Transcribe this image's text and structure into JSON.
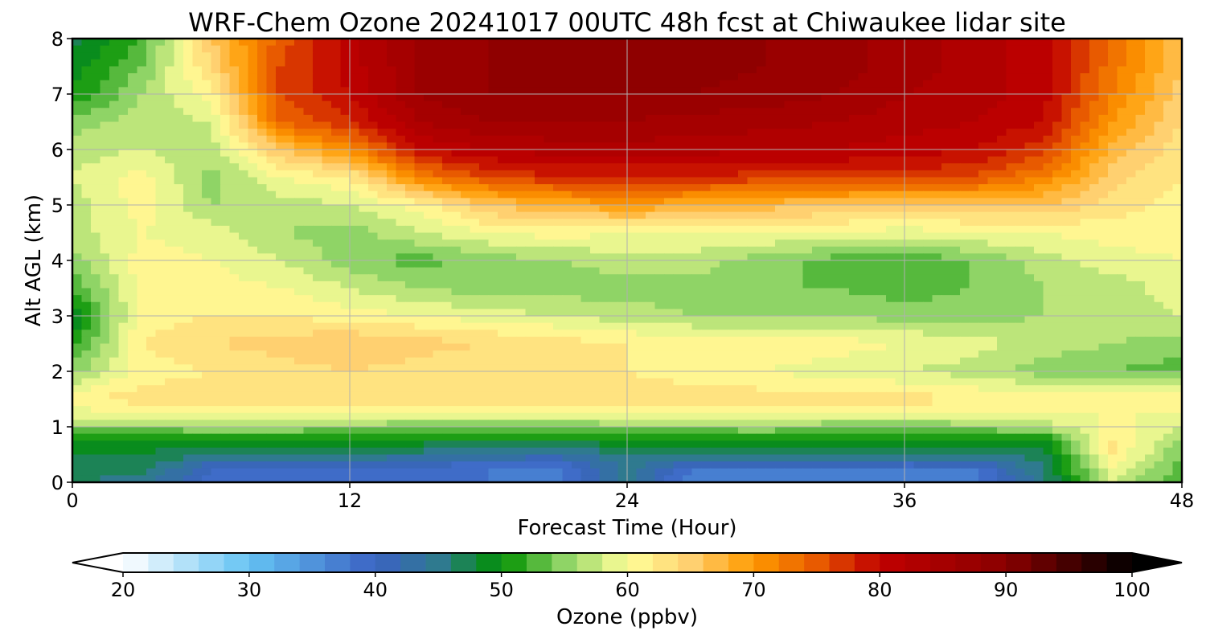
{
  "chart_data": {
    "type": "heatmap",
    "title": "WRF-Chem Ozone  20241017 00UTC 48h fcst at Chiwaukee lidar site",
    "xlabel": "Forecast Time (Hour)",
    "ylabel": "Alt AGL (km)",
    "xlim": [
      0,
      48
    ],
    "ylim": [
      0,
      8
    ],
    "xticks": [
      "0",
      "12",
      "24",
      "36",
      "48"
    ],
    "yticks": [
      "0",
      "1",
      "2",
      "3",
      "4",
      "5",
      "6",
      "7",
      "8"
    ],
    "grid": true,
    "x_hours": [
      0,
      3,
      6,
      9,
      12,
      15,
      18,
      21,
      24,
      27,
      30,
      33,
      36,
      39,
      42,
      45,
      48
    ],
    "y_km": [
      0,
      0.25,
      0.5,
      0.75,
      1,
      1.25,
      1.5,
      2,
      2.5,
      3,
      3.5,
      4,
      4.5,
      5,
      5.5,
      6,
      6.5,
      7,
      7.5,
      8
    ],
    "values_ppbv": [
      [
        46,
        45,
        39,
        39,
        39,
        39,
        38,
        37,
        45,
        36,
        36,
        37,
        37,
        37,
        45,
        58,
        52
      ],
      [
        47,
        47,
        40,
        40,
        40,
        39,
        38,
        37,
        45,
        38,
        38,
        38,
        38,
        38,
        46,
        60,
        53
      ],
      [
        48,
        48,
        46,
        46,
        46,
        45,
        44,
        43,
        46,
        46,
        46,
        46,
        46,
        46,
        47,
        62,
        54
      ],
      [
        49,
        49,
        49,
        49,
        49,
        49,
        49,
        49,
        49,
        49,
        49,
        49,
        49,
        49,
        49,
        62,
        56
      ],
      [
        55,
        55,
        56,
        56,
        55,
        54,
        54,
        54,
        55,
        55,
        56,
        54,
        54,
        55,
        57,
        61,
        58
      ],
      [
        59,
        60,
        61,
        61,
        61,
        60,
        60,
        60,
        60,
        60,
        61,
        61,
        60,
        60,
        60,
        60,
        60
      ],
      [
        62,
        63,
        63,
        64,
        64,
        64,
        64,
        64,
        64,
        64,
        63,
        63,
        63,
        62,
        61,
        61,
        61
      ],
      [
        55,
        61,
        62,
        63,
        64,
        63,
        62,
        62,
        62,
        60,
        60,
        59,
        58,
        57,
        55,
        54,
        53
      ],
      [
        51,
        62,
        64,
        65,
        66,
        65,
        64,
        63,
        62,
        61,
        61,
        61,
        60,
        59,
        57,
        56,
        55
      ],
      [
        48,
        61,
        62,
        62,
        61,
        60,
        59,
        58,
        57,
        56,
        56,
        56,
        55,
        55,
        56,
        57,
        58
      ],
      [
        52,
        61,
        61,
        60,
        58,
        56,
        55,
        55,
        55,
        55,
        54,
        54,
        53,
        54,
        56,
        57,
        59
      ],
      [
        55,
        61,
        60,
        58,
        55,
        53,
        55,
        56,
        57,
        57,
        55,
        53,
        52,
        54,
        57,
        59,
        60
      ],
      [
        57,
        60,
        59,
        56,
        55,
        58,
        60,
        61,
        60,
        60,
        60,
        60,
        59,
        60,
        60,
        61,
        61
      ],
      [
        57,
        61,
        56,
        57,
        58,
        61,
        66,
        68,
        70,
        68,
        67,
        66,
        65,
        66,
        66,
        63,
        61
      ],
      [
        58,
        61,
        55,
        60,
        62,
        72,
        76,
        78,
        78,
        78,
        77,
        77,
        77,
        76,
        72,
        65,
        62
      ],
      [
        57,
        58,
        57,
        66,
        71,
        80,
        82,
        83,
        83,
        83,
        82,
        82,
        81,
        80,
        77,
        67,
        63
      ],
      [
        55,
        57,
        58,
        74,
        78,
        84,
        86,
        86,
        86,
        85,
        85,
        84,
        83,
        82,
        80,
        70,
        64
      ],
      [
        50,
        56,
        61,
        76,
        80,
        86,
        88,
        88,
        88,
        88,
        87,
        86,
        84,
        83,
        81,
        72,
        65
      ],
      [
        49,
        54,
        64,
        76,
        81,
        86,
        88,
        89,
        89,
        89,
        88,
        87,
        85,
        83,
        81,
        73,
        66
      ],
      [
        47,
        52,
        66,
        75,
        81,
        86,
        88,
        89,
        89,
        89,
        88,
        87,
        85,
        83,
        81,
        74,
        66
      ]
    ],
    "colorbar": {
      "label": "Ozone  (ppbv)",
      "range": [
        20,
        100
      ],
      "ticks": [
        "20",
        "30",
        "40",
        "50",
        "60",
        "70",
        "80",
        "90",
        "100"
      ],
      "extend": "both",
      "orientation": "horizontal",
      "stops": [
        [
          20,
          "#ffffff"
        ],
        [
          30,
          "#64c3f3"
        ],
        [
          40,
          "#3b62c3"
        ],
        [
          45,
          "#2f7a8f"
        ],
        [
          50,
          "#009000"
        ],
        [
          55,
          "#8fd466"
        ],
        [
          60,
          "#ffff99"
        ],
        [
          65,
          "#ffd070"
        ],
        [
          70,
          "#ff9a00"
        ],
        [
          75,
          "#e85a00"
        ],
        [
          80,
          "#c00000"
        ],
        [
          90,
          "#8a0000"
        ],
        [
          100,
          "#000000"
        ]
      ]
    }
  }
}
